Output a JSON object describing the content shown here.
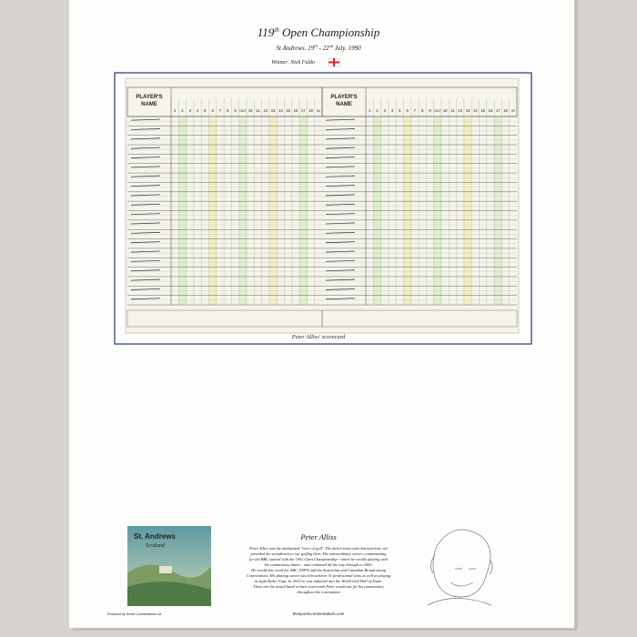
{
  "header": {
    "title": [
      "119",
      "th",
      " Open Championship"
    ],
    "subtitle": [
      "St Andrews. 19",
      "th",
      " - 22",
      "nd",
      " July. 1990"
    ],
    "winner": "Winner: Nick Faldo"
  },
  "scorecard": {
    "name_header": [
      "PLAYER'S",
      "NAME"
    ],
    "holes": [
      1,
      2,
      3,
      4,
      5,
      6,
      7,
      8,
      9,
      10,
      11,
      12,
      13,
      14,
      15,
      16,
      17,
      18
    ],
    "out": "OUT",
    "in": "IN",
    "caption": "Peter Alliss' scorecard"
  },
  "artwork": {
    "title": "St. Andrews",
    "subtitle": "Scotland"
  },
  "bio": {
    "heading": "Peter Alliss",
    "lines": [
      "Peter Alliss was the undisputed \"voice of golf\". His dulcet tones and characteristic wit",
      "provided the soundtrack to our golfing lives. His extraordinary career commentating",
      "for the BBC started with the 1961 Open Championship - where he recalls playing with",
      "his commentary duties - and continued all the way through to 2020.",
      "He would also work for ABC, ESPN and the Australian and Canadian Broadcasting",
      "Corporations. His playing career saw him achieve 31 professional wins as well as playing",
      "in eight Ryder Cups. In 2012 he was inducted into the World Golf Hall of Fame.",
      "These are the actual hand written scorecards Peter would use for his commentary",
      "throughout the tournament"
    ]
  },
  "footer": {
    "left": "Produced by Great Commentators Ltd",
    "center": "thesportscommentators.com"
  }
}
